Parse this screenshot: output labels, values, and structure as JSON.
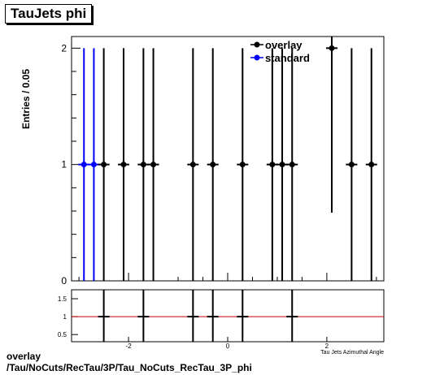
{
  "title": "TauJets phi",
  "footer": {
    "line1": "overlay",
    "line2": "/Tau/NoCuts/RecTau/3P/Tau_NoCuts_RecTau_3P_phi"
  },
  "chart_data": {
    "type": "scatter",
    "title": "TauJets phi",
    "ylabel": "Entries / 0.05",
    "xlabel": "Tau Jets Azimuthal Angle",
    "xlim": [
      -3.15,
      3.15
    ],
    "ylim": [
      0,
      2.1
    ],
    "yticks": [
      0,
      1,
      2
    ],
    "ratio_ylim": [
      0.3,
      1.75
    ],
    "ratio_yticks": [
      0.5,
      1,
      1.5
    ],
    "ratio_xticks": [
      -2,
      0,
      2
    ],
    "legend_position": "top-right",
    "series": [
      {
        "name": "overlay",
        "color": "#000000",
        "points": [
          {
            "x": -2.5,
            "y": 1
          },
          {
            "x": -2.1,
            "y": 1
          },
          {
            "x": -1.7,
            "y": 1
          },
          {
            "x": -1.5,
            "y": 1
          },
          {
            "x": -0.7,
            "y": 1
          },
          {
            "x": -0.3,
            "y": 1
          },
          {
            "x": 0.3,
            "y": 1
          },
          {
            "x": 0.9,
            "y": 1
          },
          {
            "x": 1.1,
            "y": 1
          },
          {
            "x": 1.3,
            "y": 1
          },
          {
            "x": 2.1,
            "y": 2
          },
          {
            "x": 2.5,
            "y": 1
          },
          {
            "x": 2.9,
            "y": 1
          }
        ]
      },
      {
        "name": "standard",
        "color": "#0000ff",
        "points": [
          {
            "x": -2.9,
            "y": 1
          },
          {
            "x": -2.7,
            "y": 1
          }
        ]
      }
    ],
    "ratio": {
      "line_color": "#cc0000",
      "points": [
        {
          "x": -2.5,
          "y": 1
        },
        {
          "x": -1.7,
          "y": 1
        },
        {
          "x": -0.7,
          "y": 1
        },
        {
          "x": -0.3,
          "y": 1
        },
        {
          "x": 0.3,
          "y": 1
        },
        {
          "x": 1.3,
          "y": 1
        }
      ]
    }
  }
}
